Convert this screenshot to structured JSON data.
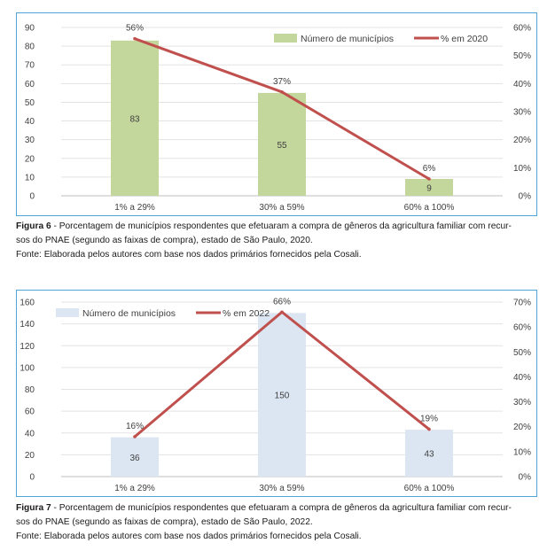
{
  "chart_data": [
    {
      "type": "bar",
      "categories": [
        "1% a 29%",
        "30% a 59%",
        "60% a 100%"
      ],
      "series": [
        {
          "name": "Número de municípios",
          "type": "bar",
          "values": [
            83,
            55,
            9
          ],
          "color": "#c3d69b",
          "labels": [
            "83",
            "55",
            "9"
          ]
        },
        {
          "name": "% em 2020",
          "type": "line",
          "axis": "right",
          "values": [
            56,
            37,
            6
          ],
          "color": "#c0504d",
          "labels": [
            "56%",
            "37%",
            "6%"
          ]
        }
      ],
      "y_left": {
        "min": 0,
        "max": 90,
        "ticks": [
          "0",
          "10",
          "20",
          "30",
          "40",
          "50",
          "60",
          "70",
          "80",
          "90"
        ]
      },
      "y_right": {
        "min": 0,
        "max": 60,
        "ticks": [
          "0%",
          "10%",
          "20%",
          "30%",
          "40%",
          "50%",
          "60%"
        ]
      },
      "grid": true,
      "legend_position": "top-right"
    },
    {
      "type": "bar",
      "categories": [
        "1% a 29%",
        "30% a 59%",
        "60% a 100%"
      ],
      "series": [
        {
          "name": "Número de municípios",
          "type": "bar",
          "values": [
            36,
            150,
            43
          ],
          "color": "#dce6f2",
          "labels": [
            "36",
            "150",
            "43"
          ]
        },
        {
          "name": "% em 2022",
          "type": "line",
          "axis": "right",
          "values": [
            16,
            66,
            19
          ],
          "color": "#c0504d",
          "labels": [
            "16%",
            "66%",
            "19%"
          ]
        }
      ],
      "y_left": {
        "min": 0,
        "max": 160,
        "ticks": [
          "0",
          "20",
          "40",
          "60",
          "80",
          "100",
          "120",
          "140",
          "160"
        ]
      },
      "y_right": {
        "min": 0,
        "max": 70,
        "ticks": [
          "0%",
          "10%",
          "20%",
          "30%",
          "40%",
          "50%",
          "60%",
          "70%"
        ]
      },
      "grid": true,
      "legend_position": "top-left"
    }
  ],
  "captions": [
    {
      "figure_label": "Figura 6",
      "line1": " - Porcentagem de municípios respondentes que efetuaram a compra de gêneros da agricultura familiar com recur-",
      "line2": "sos do PNAE (segundo as faixas de compra), estado de São Paulo, 2020.",
      "source": "Fonte: Elaborada pelos autores com base nos dados primários fornecidos pela Cosali."
    },
    {
      "figure_label": "Figura 7",
      "line1": " - Porcentagem de municípios respondentes que efetuaram a compra de gêneros da agricultura familiar com recur-",
      "line2": "sos do PNAE (segundo as faixas de compra), estado de São Paulo, 2022.",
      "source": "Fonte: Elaborada pelos autores com base nos dados primários fornecidos pela Cosali."
    }
  ]
}
